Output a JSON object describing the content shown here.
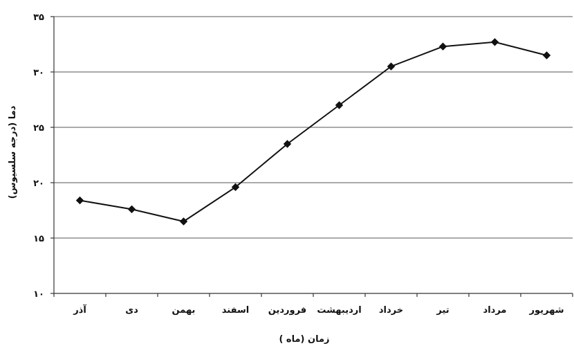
{
  "chart_data": {
    "type": "line",
    "categories": [
      "آذر",
      "دی",
      "بهمن",
      "اسفند",
      "فروردین",
      "اردیبهشت",
      "خرداد",
      "تیر",
      "مرداد",
      "شهریور"
    ],
    "series": [
      {
        "values": [
          18.4,
          17.6,
          16.5,
          19.6,
          23.5,
          27.0,
          30.5,
          32.3,
          32.7,
          31.5
        ]
      }
    ],
    "yticks": [
      "۱۰",
      "۱۵",
      "۲۰",
      "۲۵",
      "۳۰",
      "۳۵"
    ],
    "ylim": [
      10,
      35
    ],
    "xlabel": "زمان (ماه )",
    "ylabel": "دما (درجه سلسیوس)",
    "grid": true,
    "line_color": "#111111"
  }
}
